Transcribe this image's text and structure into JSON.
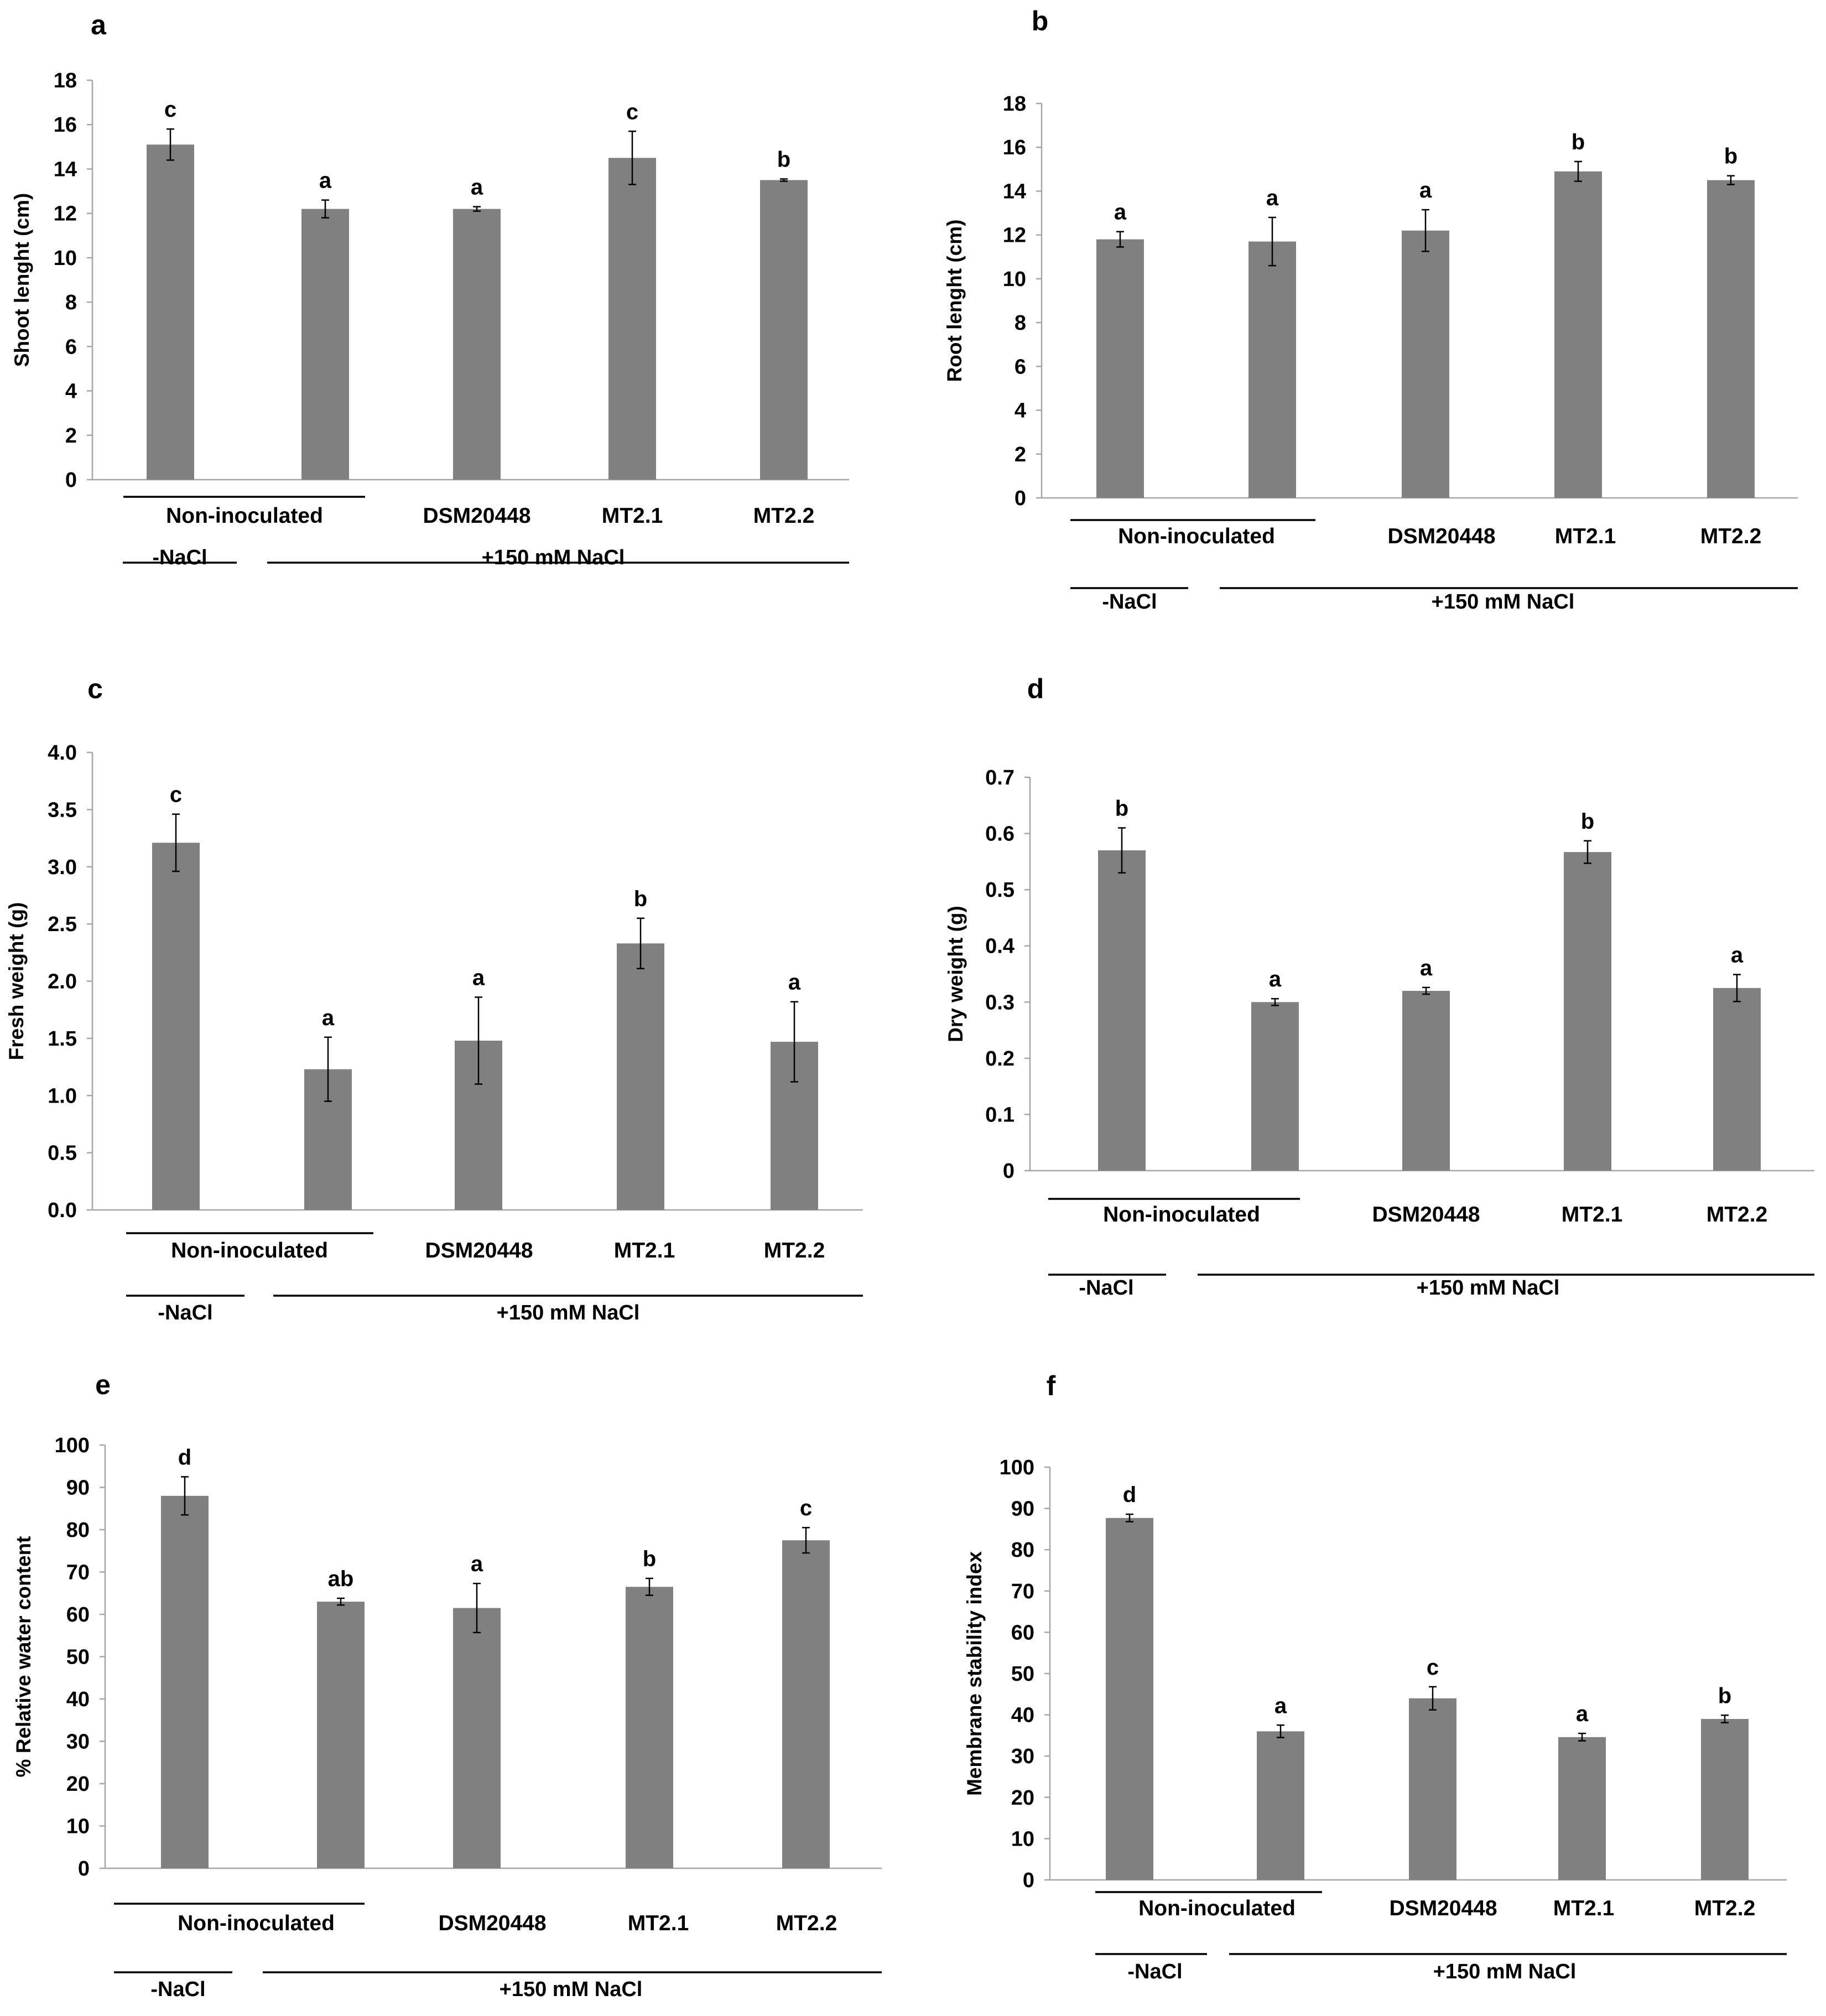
{
  "chart_data": [
    {
      "panel": "a",
      "type": "bar",
      "ylabel": "Shoot lenght (cm)",
      "ylim": [
        0,
        18
      ],
      "yticks": [
        0,
        2,
        4,
        6,
        8,
        10,
        12,
        14,
        16,
        18
      ],
      "categories": [
        "Non-inoculated",
        "Non-inoculated",
        "DSM20448",
        "MT2.1",
        "MT2.2"
      ],
      "category_labels": [
        "Non-inoculated",
        "DSM20448",
        "MT2.1",
        "MT2.2"
      ],
      "values": [
        15.1,
        12.2,
        12.2,
        14.5,
        13.5
      ],
      "errors": [
        0.7,
        0.4,
        0.1,
        1.2,
        0.05
      ],
      "significance": [
        "c",
        "a",
        "a",
        "c",
        "b"
      ],
      "groups": [
        "-NaCl",
        "+150 mM NaCl"
      ]
    },
    {
      "panel": "b",
      "type": "bar",
      "ylabel": "Root lenght (cm)",
      "ylim": [
        0,
        18
      ],
      "yticks": [
        0,
        2,
        4,
        6,
        8,
        10,
        12,
        14,
        16,
        18
      ],
      "categories": [
        "Non-inoculated",
        "Non-inoculated",
        "DSM20448",
        "MT2.1",
        "MT2.2"
      ],
      "category_labels": [
        "Non-inoculated",
        "DSM20448",
        "MT2.1",
        "MT2.2"
      ],
      "values": [
        11.8,
        11.7,
        12.2,
        14.9,
        14.5
      ],
      "errors": [
        0.35,
        1.1,
        0.95,
        0.45,
        0.2
      ],
      "significance": [
        "a",
        "a",
        "a",
        "b",
        "b"
      ],
      "groups": [
        "-NaCl",
        "+150 mM NaCl"
      ]
    },
    {
      "panel": "c",
      "type": "bar",
      "ylabel": "Fresh weight (g)",
      "ylim": [
        0,
        4
      ],
      "yticks": [
        0.0,
        0.5,
        1.0,
        1.5,
        2.0,
        2.5,
        3.0,
        3.5,
        4.0
      ],
      "tick_decimals": 1,
      "categories": [
        "Non-inoculated",
        "Non-inoculated",
        "DSM20448",
        "MT2.1",
        "MT2.2"
      ],
      "category_labels": [
        "Non-inoculated",
        "DSM20448",
        "MT2.1",
        "MT2.2"
      ],
      "values": [
        3.21,
        1.23,
        1.48,
        2.33,
        1.47
      ],
      "errors": [
        0.25,
        0.28,
        0.38,
        0.22,
        0.35
      ],
      "significance": [
        "c",
        "a",
        "a",
        "b",
        "a"
      ],
      "groups": [
        "-NaCl",
        "+150 mM NaCl"
      ]
    },
    {
      "panel": "d",
      "type": "bar",
      "ylabel": "Dry weight (g)",
      "ylim": [
        0,
        0.7
      ],
      "yticks": [
        0,
        0.1,
        0.2,
        0.3,
        0.4,
        0.5,
        0.6,
        0.7
      ],
      "categories": [
        "Non-inoculated",
        "Non-inoculated",
        "DSM20448",
        "MT2.1",
        "MT2.2"
      ],
      "category_labels": [
        "Non-inoculated",
        "DSM20448",
        "MT2.1",
        "MT2.2"
      ],
      "values": [
        0.57,
        0.3,
        0.32,
        0.567,
        0.325
      ],
      "errors": [
        0.04,
        0.006,
        0.006,
        0.02,
        0.024
      ],
      "significance": [
        "b",
        "a",
        "a",
        "b",
        "a"
      ],
      "groups": [
        "-NaCl",
        "+150 mM NaCl"
      ]
    },
    {
      "panel": "e",
      "type": "bar",
      "ylabel": "% Relative water content",
      "ylim": [
        0,
        100
      ],
      "yticks": [
        0,
        10,
        20,
        30,
        40,
        50,
        60,
        70,
        80,
        90,
        100
      ],
      "categories": [
        "Non-inoculated",
        "Non-inoculated",
        "DSM20448",
        "MT2.1",
        "MT2.2"
      ],
      "category_labels": [
        "Non-inoculated",
        "DSM20448",
        "MT2.1",
        "MT2.2"
      ],
      "values": [
        88,
        63,
        61.5,
        66.5,
        77.5
      ],
      "errors": [
        4.5,
        0.8,
        5.8,
        2,
        3
      ],
      "significance": [
        "d",
        "ab",
        "a",
        "b",
        "c"
      ],
      "groups": [
        "-NaCl",
        "+150 mM NaCl"
      ]
    },
    {
      "panel": "f",
      "type": "bar",
      "ylabel": "Membrane stability index",
      "ylim": [
        0,
        100
      ],
      "yticks": [
        0,
        10,
        20,
        30,
        40,
        50,
        60,
        70,
        80,
        90,
        100
      ],
      "categories": [
        "Non-inoculated",
        "Non-inoculated",
        "DSM20448",
        "MT2.1",
        "MT2.2"
      ],
      "category_labels": [
        "Non-inoculated",
        "DSM20448",
        "MT2.1",
        "MT2.2"
      ],
      "values": [
        87.7,
        36,
        44,
        34.6,
        39
      ],
      "errors": [
        0.9,
        1.5,
        2.8,
        0.9,
        0.9
      ],
      "significance": [
        "d",
        "a",
        "c",
        "a",
        "b"
      ],
      "groups": [
        "-NaCl",
        "+150 mM NaCl"
      ]
    }
  ]
}
